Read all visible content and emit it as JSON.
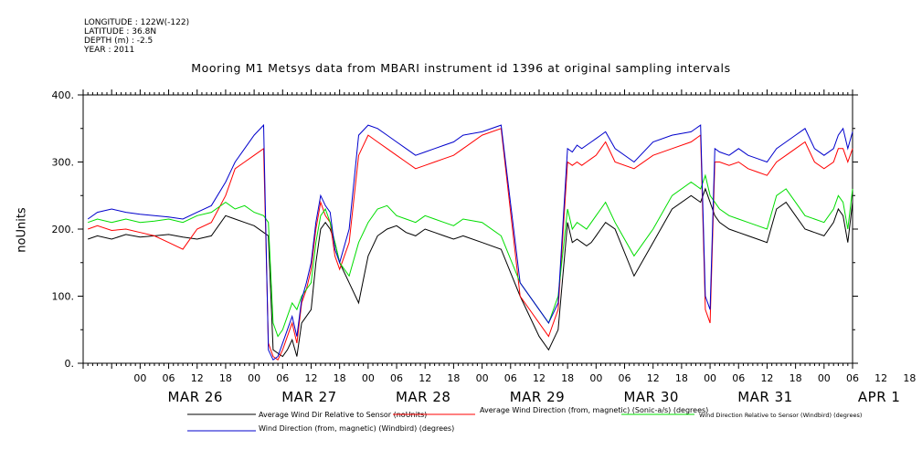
{
  "header": {
    "longitude": "LONGITUDE : 122W(-122)",
    "latitude": "LATITUDE : 36.8N",
    "depth": "DEPTH (m) : -2.5",
    "year": "YEAR : 2011"
  },
  "chart_data": {
    "type": "line",
    "title": "Mooring M1 Metsys data from MBARI instrument id 1396 at original sampling intervals",
    "ylabel": "noUnits",
    "ylim": [
      0,
      400
    ],
    "y_ticks": [
      0,
      100,
      200,
      300,
      400
    ],
    "y_tick_labels": [
      "0.",
      "100.",
      "200.",
      "300.",
      "400."
    ],
    "x_range_hours": [
      -12,
      150
    ],
    "hour_tick_labels": [
      "00",
      "06",
      "12",
      "18",
      "00",
      "06",
      "12",
      "18",
      "00",
      "06",
      "12",
      "18",
      "00",
      "06",
      "12",
      "18",
      "00",
      "06",
      "12",
      "18",
      "00",
      "06",
      "12",
      "18",
      "00",
      "06",
      "12",
      "18"
    ],
    "day_labels": [
      "MAR 26",
      "MAR 27",
      "MAR 28",
      "MAR 29",
      "MAR 30",
      "MAR 31",
      "APR 1"
    ],
    "grid": false,
    "legend_position": "bottom",
    "series": [
      {
        "name": "Average Wind Dir Relative to Sensor (noUnits)",
        "color": "#000000",
        "x": [
          -11,
          -9,
          -6,
          -3,
          0,
          3,
          6,
          9,
          12,
          15,
          18,
          20,
          22,
          24,
          26,
          27,
          28,
          29,
          30,
          31,
          32,
          33,
          34,
          35,
          36,
          37,
          38,
          39,
          40,
          41,
          42,
          44,
          46,
          48,
          50,
          52,
          54,
          56,
          58,
          60,
          62,
          64,
          66,
          68,
          72,
          76,
          80,
          84,
          86,
          88,
          90,
          91,
          92,
          93,
          94,
          95,
          96,
          97,
          98,
          100,
          104,
          108,
          112,
          116,
          118,
          119,
          120,
          121,
          122,
          124,
          126,
          128,
          130,
          132,
          134,
          136,
          138,
          140,
          142,
          144,
          146,
          147,
          148,
          149,
          150
        ],
        "y": [
          185,
          190,
          185,
          192,
          188,
          190,
          192,
          188,
          185,
          190,
          220,
          215,
          210,
          205,
          195,
          190,
          20,
          15,
          10,
          20,
          35,
          10,
          60,
          70,
          80,
          150,
          200,
          210,
          200,
          180,
          150,
          120,
          90,
          160,
          190,
          200,
          205,
          195,
          190,
          200,
          195,
          190,
          185,
          190,
          180,
          170,
          100,
          40,
          20,
          50,
          210,
          180,
          185,
          180,
          175,
          180,
          190,
          200,
          210,
          200,
          130,
          180,
          230,
          250,
          240,
          260,
          240,
          220,
          210,
          200,
          195,
          190,
          185,
          180,
          230,
          240,
          220,
          200,
          195,
          190,
          210,
          230,
          220,
          180,
          240
        ]
      },
      {
        "name": "Average Wind Direction (from, magnetic) (Sonic-a/s) (degrees)",
        "color": "#ff0000",
        "x": [
          -11,
          -9,
          -6,
          -3,
          0,
          3,
          6,
          9,
          12,
          15,
          18,
          20,
          22,
          24,
          26,
          27,
          28,
          29,
          30,
          31,
          32,
          33,
          34,
          35,
          36,
          37,
          38,
          39,
          40,
          41,
          42,
          44,
          46,
          48,
          50,
          52,
          54,
          56,
          58,
          60,
          62,
          64,
          66,
          68,
          72,
          76,
          80,
          84,
          86,
          88,
          90,
          91,
          92,
          93,
          94,
          95,
          96,
          97,
          98,
          100,
          104,
          108,
          112,
          116,
          118,
          119,
          120,
          121,
          122,
          124,
          126,
          128,
          130,
          132,
          134,
          136,
          138,
          140,
          142,
          144,
          146,
          147,
          148,
          149,
          150
        ],
        "y": [
          200,
          205,
          198,
          200,
          195,
          190,
          180,
          170,
          200,
          210,
          250,
          290,
          300,
          310,
          320,
          30,
          10,
          5,
          20,
          40,
          60,
          30,
          90,
          110,
          140,
          200,
          240,
          220,
          210,
          160,
          140,
          180,
          310,
          340,
          330,
          320,
          310,
          300,
          290,
          295,
          300,
          305,
          310,
          320,
          340,
          350,
          100,
          60,
          40,
          80,
          300,
          295,
          300,
          295,
          300,
          305,
          310,
          320,
          330,
          300,
          290,
          310,
          320,
          330,
          340,
          80,
          60,
          300,
          300,
          295,
          300,
          290,
          285,
          280,
          300,
          310,
          320,
          330,
          300,
          290,
          300,
          320,
          320,
          300,
          320
        ]
      },
      {
        "name": "Wind Direction Relative to Sensor (Windbird) (degrees)",
        "color": "#00dd00",
        "x": [
          -11,
          -9,
          -6,
          -3,
          0,
          3,
          6,
          9,
          12,
          15,
          18,
          20,
          22,
          24,
          26,
          27,
          28,
          29,
          30,
          31,
          32,
          33,
          34,
          35,
          36,
          37,
          38,
          39,
          40,
          41,
          42,
          44,
          46,
          48,
          50,
          52,
          54,
          56,
          58,
          60,
          62,
          64,
          66,
          68,
          72,
          76,
          80,
          84,
          86,
          88,
          90,
          91,
          92,
          93,
          94,
          95,
          96,
          97,
          98,
          100,
          104,
          108,
          112,
          116,
          118,
          119,
          120,
          121,
          122,
          124,
          126,
          128,
          130,
          132,
          134,
          136,
          138,
          140,
          142,
          144,
          146,
          147,
          148,
          149,
          150
        ],
        "y": [
          210,
          215,
          210,
          215,
          210,
          212,
          215,
          210,
          220,
          225,
          240,
          230,
          235,
          225,
          220,
          210,
          60,
          40,
          50,
          70,
          90,
          80,
          100,
          110,
          120,
          180,
          220,
          230,
          210,
          180,
          150,
          130,
          180,
          210,
          230,
          235,
          220,
          215,
          210,
          220,
          215,
          210,
          205,
          215,
          210,
          190,
          120,
          80,
          60,
          100,
          230,
          200,
          210,
          205,
          200,
          210,
          220,
          230,
          240,
          210,
          160,
          200,
          250,
          270,
          260,
          280,
          250,
          240,
          230,
          220,
          215,
          210,
          205,
          200,
          250,
          260,
          240,
          220,
          215,
          210,
          230,
          250,
          240,
          200,
          260
        ]
      },
      {
        "name": "Wind Direction (from, magnetic) (Windbird) (degrees)",
        "color": "#0000cc",
        "x": [
          -11,
          -9,
          -6,
          -3,
          0,
          3,
          6,
          9,
          12,
          15,
          18,
          20,
          22,
          24,
          26,
          27,
          28,
          29,
          30,
          31,
          32,
          33,
          34,
          35,
          36,
          37,
          38,
          39,
          40,
          41,
          42,
          44,
          46,
          48,
          50,
          52,
          54,
          56,
          58,
          60,
          62,
          64,
          66,
          68,
          72,
          76,
          80,
          84,
          86,
          88,
          90,
          91,
          92,
          93,
          94,
          95,
          96,
          97,
          98,
          100,
          104,
          108,
          112,
          116,
          118,
          119,
          120,
          121,
          122,
          124,
          126,
          128,
          130,
          132,
          134,
          136,
          138,
          140,
          142,
          144,
          146,
          147,
          148,
          149,
          150
        ],
        "y": [
          215,
          225,
          230,
          225,
          222,
          220,
          218,
          215,
          225,
          235,
          270,
          300,
          320,
          340,
          355,
          20,
          5,
          10,
          30,
          50,
          70,
          40,
          95,
          120,
          150,
          210,
          250,
          235,
          225,
          170,
          150,
          200,
          340,
          355,
          350,
          340,
          330,
          320,
          310,
          315,
          320,
          325,
          330,
          340,
          345,
          355,
          120,
          80,
          60,
          90,
          320,
          315,
          325,
          320,
          325,
          330,
          335,
          340,
          345,
          320,
          300,
          330,
          340,
          345,
          355,
          100,
          80,
          320,
          315,
          310,
          320,
          310,
          305,
          300,
          320,
          330,
          340,
          350,
          320,
          310,
          320,
          340,
          350,
          320,
          345
        ]
      }
    ]
  }
}
